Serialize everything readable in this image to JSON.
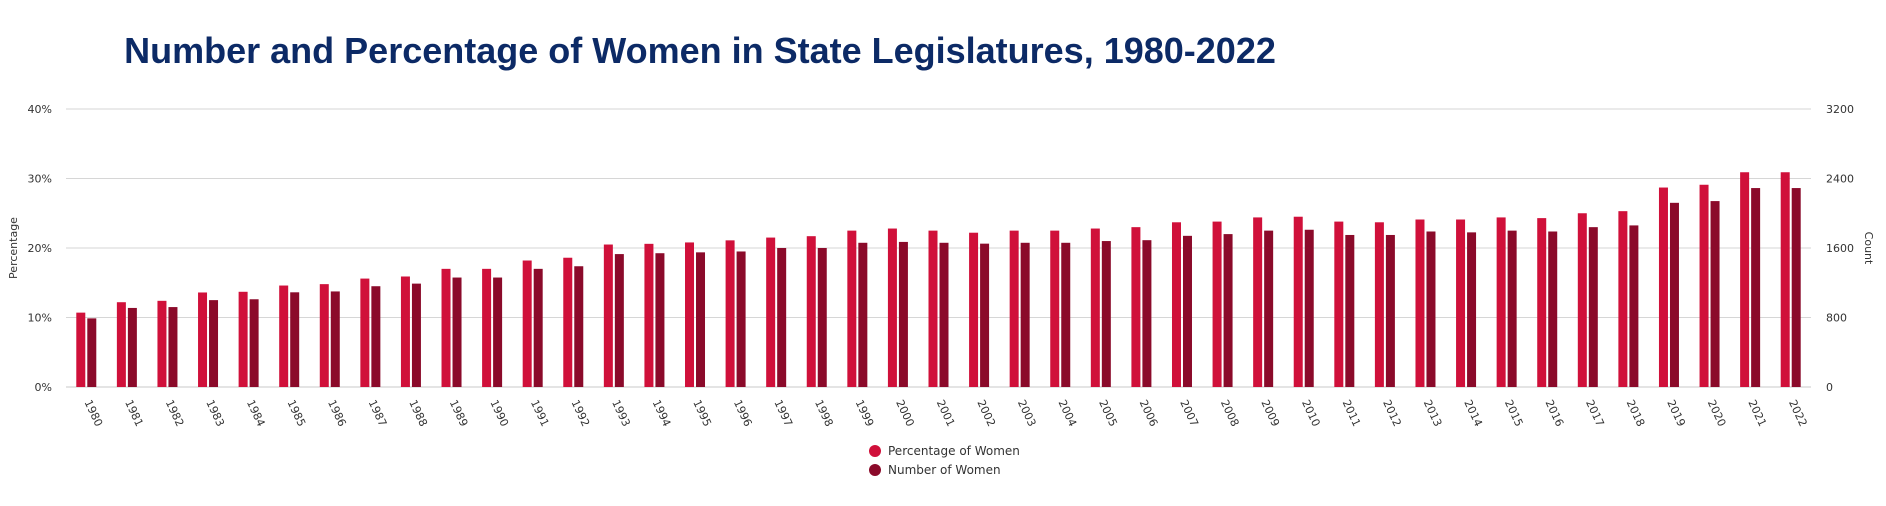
{
  "chart_data": {
    "type": "bar",
    "title": "Number and Percentage of Women in State Legislatures, 1980-2022",
    "ylabel_left": "Percentage",
    "ylabel_right": "Count",
    "ylim_left": [
      0,
      40
    ],
    "ylim_right": [
      0,
      3200
    ],
    "yticks_left": [
      "0%",
      "10%",
      "20%",
      "30%",
      "40%"
    ],
    "yticks_right": [
      "0",
      "800",
      "1600",
      "2400",
      "3200"
    ],
    "grid": true,
    "legend_position": "bottom",
    "categories": [
      "1980",
      "1981",
      "1982",
      "1983",
      "1984",
      "1985",
      "1986",
      "1987",
      "1988",
      "1989",
      "1990",
      "1991",
      "1992",
      "1993",
      "1994",
      "1995",
      "1996",
      "1997",
      "1998",
      "1999",
      "2000",
      "2001",
      "2002",
      "2003",
      "2004",
      "2005",
      "2006",
      "2007",
      "2008",
      "2009",
      "2010",
      "2011",
      "2012",
      "2013",
      "2014",
      "2015",
      "2016",
      "2017",
      "2018",
      "2019",
      "2020",
      "2021",
      "2022"
    ],
    "series": [
      {
        "name": "Percentage of Women",
        "axis": "left",
        "color": "#d0103a",
        "values": [
          10.7,
          12.2,
          12.4,
          13.6,
          13.7,
          14.6,
          14.8,
          15.6,
          15.9,
          17.0,
          17.0,
          18.2,
          18.6,
          20.5,
          20.6,
          20.8,
          21.1,
          21.5,
          21.7,
          22.5,
          22.8,
          22.5,
          22.2,
          22.5,
          22.5,
          22.8,
          23.0,
          23.7,
          23.8,
          24.4,
          24.5,
          23.8,
          23.7,
          24.1,
          24.1,
          24.4,
          24.3,
          25.0,
          25.3,
          28.7,
          29.1,
          30.9,
          30.9
        ]
      },
      {
        "name": "Number of Women",
        "axis": "right",
        "color": "#8b0a2a",
        "values": [
          790,
          910,
          920,
          1000,
          1010,
          1090,
          1100,
          1160,
          1190,
          1260,
          1260,
          1360,
          1390,
          1530,
          1540,
          1550,
          1560,
          1600,
          1600,
          1660,
          1670,
          1660,
          1650,
          1660,
          1660,
          1680,
          1690,
          1740,
          1760,
          1800,
          1810,
          1750,
          1750,
          1790,
          1780,
          1800,
          1790,
          1840,
          1860,
          2120,
          2140,
          2290,
          2290
        ]
      }
    ]
  }
}
